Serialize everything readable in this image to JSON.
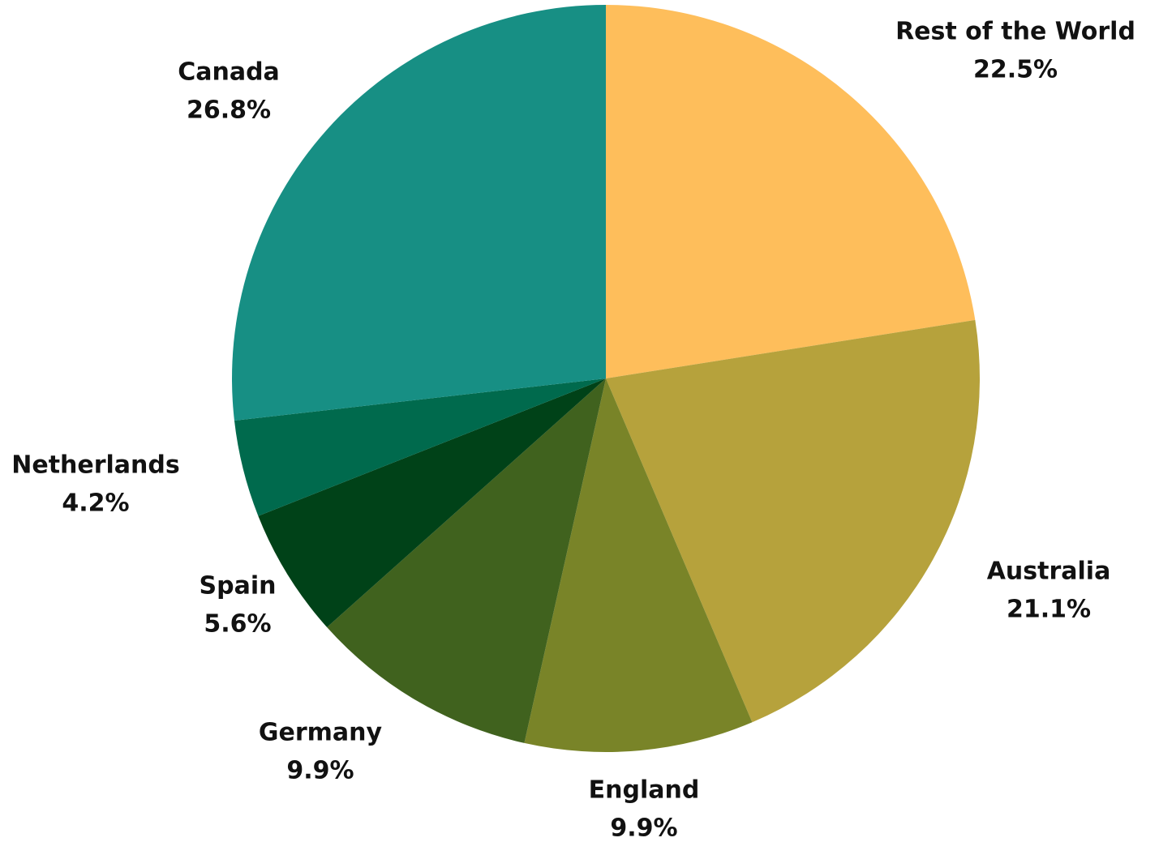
{
  "chart_data": {
    "type": "pie",
    "start_angle": "12 o'clock",
    "direction": "clockwise",
    "slices": [
      {
        "label": "Rest of the World",
        "value": 22.5,
        "value_text": "22.5%",
        "color": "#FEBE5B"
      },
      {
        "label": "Australia",
        "value": 21.1,
        "value_text": "21.1%",
        "color": "#B6A23C"
      },
      {
        "label": "England",
        "value": 9.9,
        "value_text": "9.9%",
        "color": "#798428"
      },
      {
        "label": "Germany",
        "value": 9.9,
        "value_text": "9.9%",
        "color": "#40621E"
      },
      {
        "label": "Spain",
        "value": 5.6,
        "value_text": "5.6%",
        "color": "#004218"
      },
      {
        "label": "Netherlands",
        "value": 4.2,
        "value_text": "4.2%",
        "color": "#006A4D"
      },
      {
        "label": "Canada",
        "value": 26.8,
        "value_text": "26.8%",
        "color": "#178F84"
      }
    ]
  }
}
